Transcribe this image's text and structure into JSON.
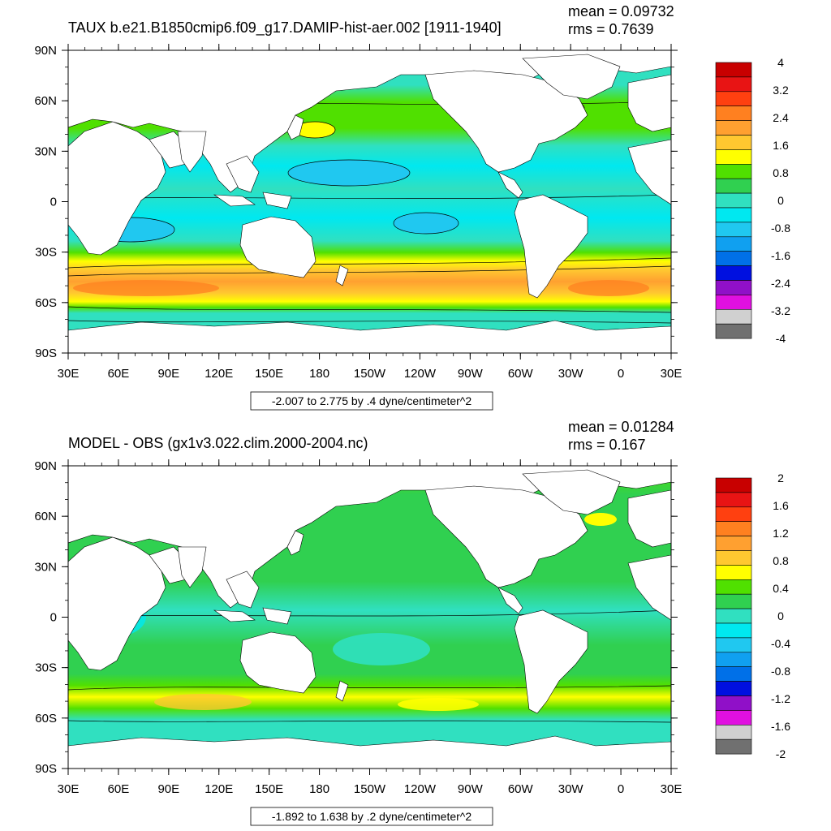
{
  "panels": [
    {
      "title": "TAUX b.e21.B1850cmip6.f09_g17.DAMIP-hist-aer.002 [1911-1940]",
      "mean_label": "mean = 0.09732",
      "rms_label": "rms = 0.7639",
      "info_box": "-2.007 to 2.775 by .4 dyne/centimeter^2",
      "colorbar_labels": [
        "4",
        "3.2",
        "2.4",
        "1.6",
        "0.8",
        "0",
        "-0.8",
        "-1.6",
        "-2.4",
        "-3.2",
        "-4"
      ],
      "colorbar_colors": [
        "#c80000",
        "#e81414",
        "#ff4010",
        "#ff8020",
        "#ffa030",
        "#ffc830",
        "#ffff00",
        "#50e000",
        "#30d050",
        "#30e0c0",
        "#00e8f0",
        "#20c8f0",
        "#10a0f0",
        "#0070e8",
        "#0010e0",
        "#9010c8",
        "#e010e0",
        "#d0d0d0",
        "#707070"
      ]
    },
    {
      "title": "MODEL - OBS (gx1v3.022.clim.2000-2004.nc)",
      "mean_label": "mean = 0.01284",
      "rms_label": "rms = 0.167",
      "info_box": "-1.892 to 1.638 by .2 dyne/centimeter^2",
      "colorbar_labels": [
        "2",
        "1.6",
        "1.2",
        "0.8",
        "0.4",
        "0",
        "-0.4",
        "-0.8",
        "-1.2",
        "-1.6",
        "-2"
      ],
      "colorbar_colors": [
        "#c80000",
        "#e81414",
        "#ff4010",
        "#ff8020",
        "#ffa030",
        "#ffc830",
        "#ffff00",
        "#50e000",
        "#30d050",
        "#30e0c0",
        "#00e8f0",
        "#20c8f0",
        "#10a0f0",
        "#0070e8",
        "#0010e0",
        "#9010c8",
        "#e010e0",
        "#d0d0d0",
        "#707070"
      ]
    }
  ],
  "chart_data": [
    {
      "type": "heatmap",
      "title": "TAUX b.e21.B1850cmip6.f09_g17.DAMIP-hist-aer.002 [1911-1940]",
      "variable": "TAUX",
      "units": "dyne/centimeter^2",
      "mean": 0.09732,
      "rms": 0.7639,
      "data_range": [
        -2.007,
        2.775
      ],
      "contour_interval": 0.4,
      "colorbar_range": [
        -4,
        4
      ],
      "x_ticks": [
        "30E",
        "60E",
        "90E",
        "120E",
        "150E",
        "180",
        "150W",
        "120W",
        "90W",
        "60W",
        "30W",
        "0",
        "30E"
      ],
      "y_ticks": [
        "90N",
        "60N",
        "30N",
        "0",
        "30S",
        "60S",
        "90S"
      ],
      "xlim": [
        30,
        390
      ],
      "ylim": [
        -90,
        90
      ],
      "zonal_bands": [
        {
          "lat": 75,
          "value": 0.0
        },
        {
          "lat": 45,
          "value": 0.8
        },
        {
          "lat": 30,
          "value": 0.2
        },
        {
          "lat": 15,
          "value": -0.7
        },
        {
          "lat": 0,
          "value": -0.4
        },
        {
          "lat": -15,
          "value": -0.6
        },
        {
          "lat": -30,
          "value": 0.2
        },
        {
          "lat": -50,
          "value": 2.2
        },
        {
          "lat": -65,
          "value": 0.0
        }
      ]
    },
    {
      "type": "heatmap",
      "title": "MODEL - OBS (gx1v3.022.clim.2000-2004.nc)",
      "units": "dyne/centimeter^2",
      "mean": 0.01284,
      "rms": 0.167,
      "data_range": [
        -1.892,
        1.638
      ],
      "contour_interval": 0.2,
      "colorbar_range": [
        -2,
        2
      ],
      "x_ticks": [
        "30E",
        "60E",
        "90E",
        "120E",
        "150E",
        "180",
        "150W",
        "120W",
        "90W",
        "60W",
        "30W",
        "0",
        "30E"
      ],
      "y_ticks": [
        "90N",
        "60N",
        "30N",
        "0",
        "30S",
        "60S",
        "90S"
      ],
      "xlim": [
        30,
        390
      ],
      "ylim": [
        -90,
        90
      ],
      "zonal_bands": [
        {
          "lat": 75,
          "value": 0.1
        },
        {
          "lat": 45,
          "value": 0.1
        },
        {
          "lat": 15,
          "value": 0.0
        },
        {
          "lat": 0,
          "value": -0.1
        },
        {
          "lat": -20,
          "value": 0.0
        },
        {
          "lat": -50,
          "value": 0.4
        },
        {
          "lat": -65,
          "value": -0.1
        }
      ]
    }
  ]
}
